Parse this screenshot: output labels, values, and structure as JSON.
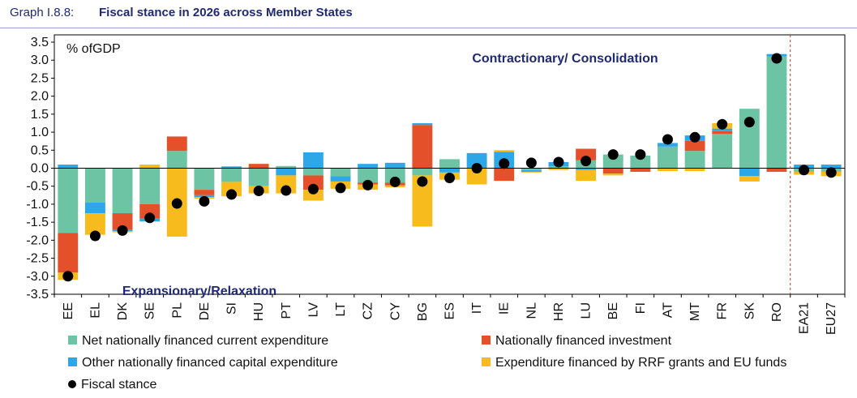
{
  "header": {
    "graph_number": "Graph I.8.8:",
    "title": "Fiscal stance in 2026 across Member States"
  },
  "chart_data": {
    "type": "bar",
    "stacked": true,
    "title": "Fiscal stance in 2026 across Member States",
    "ylabel": "% ofGDP",
    "xlabel": "",
    "ylim": [
      -3.5,
      3.5
    ],
    "ytick_step": 0.5,
    "ytick_labels": [
      "3.5",
      "3.0",
      "2.5",
      "2.0",
      "1.5",
      "1.0",
      "0.5",
      "0.0",
      "-0.5",
      "-1.0",
      "-1.5",
      "-2.0",
      "-2.5",
      "-3.0",
      "-3.5"
    ],
    "annotations": {
      "top": "Contractionary/ Consolidation",
      "bottom": "Expansionary/Relaxation"
    },
    "categories": [
      "EE",
      "EL",
      "DK",
      "SE",
      "PL",
      "DE",
      "SI",
      "HU",
      "PT",
      "LV",
      "LT",
      "CZ",
      "CY",
      "BG",
      "ES",
      "IT",
      "IE",
      "NL",
      "HR",
      "LU",
      "BE",
      "FI",
      "AT",
      "MT",
      "FR",
      "SK",
      "RO",
      "EA21",
      "EU27"
    ],
    "separator_after": "RO",
    "series": [
      {
        "name": "Net nationally financed current expenditure",
        "color": "#6cc4a4",
        "values": [
          -1.8,
          -0.95,
          -1.25,
          -1.0,
          0.48,
          -0.6,
          -0.38,
          -0.5,
          0.06,
          -0.2,
          -0.22,
          -0.4,
          -0.4,
          -0.2,
          0.25,
          0.0,
          0.0,
          -0.05,
          0.05,
          0.22,
          0.38,
          0.35,
          0.6,
          0.48,
          0.95,
          1.65,
          3.1,
          -0.1,
          -0.1
        ]
      },
      {
        "name": "Nationally financed investment",
        "color": "#e4502a",
        "values": [
          -1.1,
          0.0,
          -0.45,
          -0.4,
          0.4,
          -0.15,
          0.0,
          0.12,
          0.0,
          -0.4,
          0.0,
          -0.05,
          -0.08,
          1.2,
          0.0,
          0.0,
          -0.35,
          0.0,
          0.0,
          0.32,
          -0.15,
          -0.1,
          0.0,
          0.28,
          0.08,
          0.0,
          -0.1,
          0.0,
          0.0
        ]
      },
      {
        "name": "Other nationally financed capital expenditure",
        "color": "#2da7e8",
        "values": [
          0.1,
          -0.3,
          -0.05,
          -0.08,
          0.0,
          -0.05,
          0.05,
          0.0,
          -0.2,
          0.44,
          -0.15,
          0.12,
          0.15,
          0.05,
          -0.12,
          0.42,
          0.45,
          -0.05,
          0.12,
          -0.05,
          0.0,
          0.0,
          0.1,
          0.15,
          0.07,
          -0.22,
          0.07,
          0.1,
          0.1
        ]
      },
      {
        "name": "Expenditure financed by RRF grants and EU funds",
        "color": "#f7bb1e",
        "values": [
          -0.2,
          -0.6,
          -0.03,
          0.1,
          -1.9,
          -0.05,
          -0.4,
          -0.2,
          -0.5,
          -0.3,
          -0.2,
          -0.15,
          -0.05,
          -1.42,
          -0.2,
          -0.45,
          0.05,
          -0.02,
          -0.05,
          -0.3,
          -0.05,
          0.0,
          -0.08,
          -0.08,
          0.15,
          -0.15,
          0.0,
          -0.08,
          -0.12
        ]
      }
    ],
    "fiscal_stance": {
      "name": "Fiscal stance",
      "color": "#000000",
      "values": [
        -3.0,
        -1.88,
        -1.73,
        -1.38,
        -0.98,
        -0.92,
        -0.73,
        -0.63,
        -0.62,
        -0.58,
        -0.55,
        -0.47,
        -0.38,
        -0.37,
        -0.27,
        0.0,
        0.13,
        0.15,
        0.17,
        0.2,
        0.38,
        0.38,
        0.8,
        0.86,
        1.22,
        1.28,
        3.05,
        -0.05,
        -0.12
      ]
    }
  }
}
